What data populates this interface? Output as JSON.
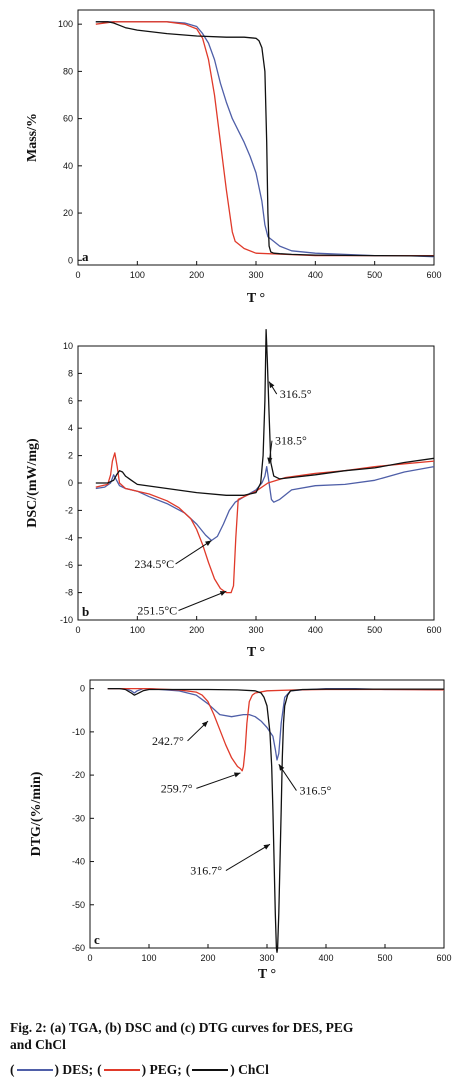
{
  "chart_data": [
    {
      "type": "line",
      "panel": "a",
      "xlabel": "T °",
      "ylabel": "Mass/%",
      "xlim": [
        0,
        600
      ],
      "ylim": [
        -2,
        106
      ],
      "xticks": [
        0,
        100,
        200,
        300,
        400,
        500,
        600
      ],
      "yticks": [
        0,
        20,
        40,
        60,
        80,
        100
      ],
      "series": [
        {
          "key": "DES",
          "color": "#4f5fa8",
          "x": [
            30,
            60,
            100,
            150,
            180,
            200,
            210,
            220,
            230,
            240,
            250,
            260,
            270,
            280,
            290,
            300,
            310,
            315,
            320,
            325,
            330,
            340,
            360,
            400,
            450,
            500,
            550,
            600
          ],
          "y": [
            101,
            101,
            101,
            101,
            100.5,
            99,
            96,
            92,
            85,
            75,
            67,
            60,
            55,
            50,
            44,
            37,
            25,
            15,
            10,
            9,
            8,
            6,
            4,
            3,
            2.5,
            2,
            2,
            1.5
          ]
        },
        {
          "key": "PEG",
          "color": "#e03a2a",
          "x": [
            30,
            60,
            100,
            150,
            180,
            200,
            210,
            220,
            230,
            240,
            250,
            260,
            265,
            270,
            280,
            300,
            350,
            400,
            500,
            600
          ],
          "y": [
            100,
            101,
            101,
            101,
            100,
            98,
            94,
            85,
            70,
            50,
            30,
            12,
            8,
            7,
            5,
            3,
            2.5,
            2,
            2,
            2
          ]
        },
        {
          "key": "ChCl",
          "color": "#111111",
          "x": [
            30,
            50,
            60,
            70,
            80,
            100,
            150,
            200,
            250,
            280,
            300,
            305,
            310,
            315,
            318,
            320,
            322,
            325,
            330,
            340,
            360,
            400,
            500,
            600
          ],
          "y": [
            101,
            101,
            100.5,
            99.5,
            98.5,
            97.5,
            96,
            95,
            94.5,
            94.5,
            94,
            93,
            90,
            80,
            50,
            20,
            6,
            3.5,
            3,
            2.8,
            2.5,
            2.2,
            2,
            1.8
          ]
        }
      ]
    },
    {
      "type": "line",
      "panel": "b",
      "xlabel": "T °",
      "ylabel": "DSC/(mW/mg)",
      "xlim": [
        0,
        600
      ],
      "ylim": [
        -10,
        10
      ],
      "xticks": [
        0,
        100,
        200,
        300,
        400,
        500,
        600
      ],
      "yticks": [
        -10,
        -8,
        -6,
        -4,
        -2,
        0,
        2,
        4,
        6,
        8,
        10
      ],
      "annotations": [
        {
          "text": "316.5°",
          "tx": 340,
          "ty": 6.2,
          "ax": 322,
          "ay": 7.4,
          "arrow": true
        },
        {
          "text": "318.5°",
          "tx": 332,
          "ty": 2.8,
          "ax": 322,
          "ay": 1.4,
          "arrow": true
        },
        {
          "text": "234.5°C",
          "tx": 95,
          "ty": -6.2,
          "ax": 225,
          "ay": -4.2,
          "arrow": true
        },
        {
          "text": "251.5°C",
          "tx": 100,
          "ty": -9.6,
          "ax": 250,
          "ay": -7.9,
          "arrow": true
        }
      ],
      "series": [
        {
          "key": "DES",
          "color": "#4f5fa8",
          "x": [
            30,
            45,
            55,
            60,
            65,
            70,
            80,
            100,
            120,
            150,
            180,
            200,
            215,
            225,
            235,
            245,
            255,
            265,
            280,
            300,
            310,
            315,
            318,
            322,
            326,
            330,
            340,
            360,
            400,
            450,
            500,
            550,
            600
          ],
          "y": [
            -0.4,
            -0.3,
            0,
            0.6,
            0.2,
            -0.2,
            -0.4,
            -0.6,
            -1,
            -1.5,
            -2.2,
            -3,
            -3.8,
            -4.2,
            -3.9,
            -3,
            -2,
            -1.4,
            -1,
            -0.5,
            0,
            0.5,
            1.2,
            0,
            -1.2,
            -1.4,
            -1.2,
            -0.5,
            -0.2,
            -0.1,
            0.2,
            0.8,
            1.2
          ]
        },
        {
          "key": "PEG",
          "color": "#e03a2a",
          "x": [
            30,
            50,
            55,
            58,
            62,
            66,
            70,
            80,
            100,
            120,
            150,
            170,
            190,
            200,
            210,
            220,
            230,
            240,
            250,
            258,
            262,
            266,
            270,
            280,
            300,
            320,
            350,
            400,
            450,
            500,
            550,
            600
          ],
          "y": [
            -0.3,
            -0.1,
            0.6,
            1.6,
            2.2,
            1.2,
            0,
            -0.4,
            -0.6,
            -0.8,
            -1.3,
            -1.8,
            -2.6,
            -3.4,
            -4.5,
            -5.8,
            -7,
            -7.7,
            -8,
            -8,
            -7.5,
            -4,
            -1.2,
            -1,
            -0.6,
            0,
            0.4,
            0.7,
            0.9,
            1.2,
            1.4,
            1.6
          ]
        },
        {
          "key": "ChCl",
          "color": "#111111",
          "x": [
            30,
            50,
            60,
            65,
            70,
            75,
            80,
            90,
            100,
            150,
            200,
            250,
            280,
            300,
            308,
            312,
            315,
            317,
            319,
            322,
            325,
            330,
            340,
            360,
            400,
            450,
            500,
            550,
            600
          ],
          "y": [
            0,
            0,
            0.2,
            0.6,
            0.9,
            0.8,
            0.5,
            0.2,
            -0.1,
            -0.4,
            -0.7,
            -0.9,
            -0.9,
            -0.7,
            0,
            2,
            6,
            11.2,
            9,
            5,
            1.5,
            0.5,
            0.3,
            0.4,
            0.6,
            0.9,
            1.1,
            1.5,
            1.8
          ]
        }
      ]
    },
    {
      "type": "line",
      "panel": "c",
      "xlabel": "T °",
      "ylabel": "DTG/(%/min)",
      "xlim": [
        0,
        600
      ],
      "ylim": [
        -60,
        2
      ],
      "xticks": [
        0,
        100,
        200,
        300,
        400,
        500,
        600
      ],
      "yticks": [
        -60,
        -50,
        -40,
        -30,
        -20,
        -10,
        0
      ],
      "annotations": [
        {
          "text": "242.7°",
          "tx": 105,
          "ty": -13,
          "ax": 200,
          "ay": -7.5,
          "arrow": true
        },
        {
          "text": "259.7°",
          "tx": 120,
          "ty": -24,
          "ax": 255,
          "ay": -19.5,
          "arrow": true
        },
        {
          "text": "316.5°",
          "tx": 355,
          "ty": -24.5,
          "ax": 320,
          "ay": -17.5,
          "arrow": true
        },
        {
          "text": "316.7°",
          "tx": 170,
          "ty": -43,
          "ax": 305,
          "ay": -36,
          "arrow": true
        }
      ],
      "series": [
        {
          "key": "DES",
          "color": "#4f5fa8",
          "x": [
            30,
            60,
            70,
            75,
            80,
            90,
            100,
            150,
            180,
            200,
            220,
            240,
            260,
            270,
            280,
            290,
            300,
            305,
            310,
            314,
            317,
            320,
            324,
            330,
            340,
            360,
            400,
            450,
            500,
            550,
            600
          ],
          "y": [
            0,
            0,
            -0.5,
            -1,
            -0.5,
            0,
            0,
            -0.5,
            -1.5,
            -3.5,
            -6,
            -6.5,
            -6,
            -6,
            -6.5,
            -7.5,
            -9,
            -10,
            -11,
            -14,
            -16.5,
            -15,
            -8,
            -2,
            -0.5,
            -0.3,
            0,
            0,
            -0.2,
            -0.2,
            -0.3
          ]
        },
        {
          "key": "PEG",
          "color": "#e03a2a",
          "x": [
            30,
            60,
            100,
            150,
            180,
            190,
            200,
            210,
            220,
            230,
            240,
            250,
            255,
            258,
            260,
            263,
            266,
            270,
            275,
            280,
            300,
            350,
            400,
            500,
            600
          ],
          "y": [
            0,
            0,
            0,
            -0.3,
            -0.8,
            -1.5,
            -3,
            -6,
            -9.5,
            -13,
            -16,
            -18,
            -18.5,
            -19,
            -18,
            -14,
            -8,
            -3,
            -1.5,
            -1,
            -0.5,
            -0.3,
            -0.2,
            -0.2,
            -0.3
          ]
        },
        {
          "key": "ChCl",
          "color": "#111111",
          "x": [
            30,
            50,
            60,
            70,
            75,
            80,
            90,
            100,
            150,
            200,
            250,
            280,
            290,
            295,
            300,
            305,
            308,
            310,
            312,
            314,
            316,
            317,
            318,
            320,
            322,
            324,
            326,
            328,
            330,
            335,
            340,
            360,
            400,
            500,
            600
          ],
          "y": [
            0,
            0,
            -0.2,
            -1,
            -1.5,
            -1.2,
            -0.5,
            -0.2,
            -0.2,
            -0.2,
            -0.3,
            -0.5,
            -1,
            -2,
            -4,
            -10,
            -18,
            -28,
            -40,
            -52,
            -60,
            -61,
            -60,
            -52,
            -40,
            -28,
            -16,
            -8,
            -4,
            -1.5,
            -0.5,
            -0.2,
            -0.1,
            -0.1,
            -0.1
          ]
        }
      ]
    }
  ],
  "caption": {
    "line1": "Fig. 2: (a) TGA, (b) DSC and (c) DTG curves for DES, PEG",
    "line2": "and ChCl",
    "legend": [
      {
        "key": "DES",
        "open": "(",
        "close": ") DES;",
        "color": "#4f5fa8"
      },
      {
        "key": "PEG",
        "open": "(",
        "close": ") PEG;",
        "color": "#e03a2a"
      },
      {
        "key": "ChCl",
        "open": "(",
        "close": ") ChCl",
        "color": "#111111"
      }
    ]
  }
}
